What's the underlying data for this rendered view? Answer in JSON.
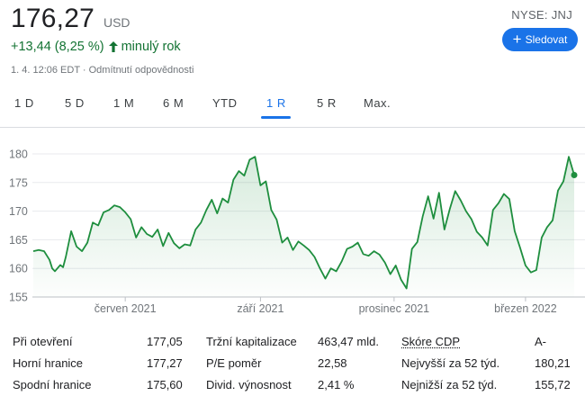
{
  "header": {
    "price": "176,27",
    "currency": "USD",
    "change": "+13,44 (8,25 %)",
    "change_period": "minulý rok",
    "meta": "1. 4. 12:06 EDT · Odmítnutí odpovědnosti",
    "ticker": "NYSE: JNJ",
    "follow_label": "Sledovat"
  },
  "tabs": [
    {
      "label": "1 D"
    },
    {
      "label": "5 D"
    },
    {
      "label": "1 M"
    },
    {
      "label": "6 M"
    },
    {
      "label": "YTD"
    },
    {
      "label": "1 R",
      "active": true
    },
    {
      "label": "5 R"
    },
    {
      "label": "Max."
    }
  ],
  "colors": {
    "positive": "#137333",
    "line": "#1e8e3e",
    "accent": "#1a73e8",
    "grid": "#e8eaed"
  },
  "stats": [
    [
      {
        "label": "Při otevření",
        "value": "177,05"
      },
      {
        "label": "Tržní kapitalizace",
        "value": "463,47 mld."
      },
      {
        "label": "Skóre CDP",
        "value": "A-",
        "link": true
      }
    ],
    [
      {
        "label": "Horní hranice",
        "value": "177,27"
      },
      {
        "label": "P/E poměr",
        "value": "22,58"
      },
      {
        "label": "Nejvyšší za 52 týd.",
        "value": "180,21"
      }
    ],
    [
      {
        "label": "Spodní hranice",
        "value": "175,60"
      },
      {
        "label": "Divid. výnosnost",
        "value": "2,41 %"
      },
      {
        "label": "Nejnižší za 52 týd.",
        "value": "155,72"
      }
    ]
  ],
  "chart_data": {
    "type": "area",
    "ylim": [
      155,
      180
    ],
    "yticks": [
      180,
      175,
      170,
      165,
      160,
      155
    ],
    "xticks": [
      {
        "label": "červen 2021",
        "t": 0.17
      },
      {
        "label": "září 2021",
        "t": 0.42
      },
      {
        "label": "prosinec 2021",
        "t": 0.667
      },
      {
        "label": "březen 2022",
        "t": 0.91
      }
    ],
    "series": [
      {
        "t": [
          0.0,
          0.01,
          0.02,
          0.03,
          0.035,
          0.04,
          0.05,
          0.055,
          0.06,
          0.07,
          0.08,
          0.09,
          0.1,
          0.11,
          0.12,
          0.13,
          0.14,
          0.15,
          0.16,
          0.17,
          0.18,
          0.19,
          0.2,
          0.21,
          0.22,
          0.23,
          0.24,
          0.25,
          0.26,
          0.27,
          0.28,
          0.29,
          0.3,
          0.31,
          0.32,
          0.33,
          0.34,
          0.35,
          0.36,
          0.37,
          0.38,
          0.39,
          0.4,
          0.41,
          0.42,
          0.43,
          0.44,
          0.45,
          0.46,
          0.47,
          0.48,
          0.49,
          0.5,
          0.51,
          0.52,
          0.53,
          0.54,
          0.55,
          0.56,
          0.57,
          0.58,
          0.59,
          0.6,
          0.61,
          0.62,
          0.63,
          0.64,
          0.65,
          0.66,
          0.67,
          0.68,
          0.69,
          0.7,
          0.71,
          0.72,
          0.73,
          0.74,
          0.75,
          0.76,
          0.77,
          0.78,
          0.79,
          0.8,
          0.81,
          0.82,
          0.83,
          0.84,
          0.85,
          0.86,
          0.87,
          0.88,
          0.89,
          0.9,
          0.91,
          0.92,
          0.93,
          0.94,
          0.95,
          0.96,
          0.97,
          0.98,
          0.99,
          1.0
        ],
        "values": [
          163.0,
          163.2,
          163.0,
          161.5,
          160.0,
          159.5,
          160.6,
          160.2,
          162.0,
          166.5,
          163.8,
          163.0,
          164.5,
          168.0,
          167.5,
          169.8,
          170.2,
          171.0,
          170.7,
          169.8,
          168.6,
          165.4,
          167.2,
          166.0,
          165.5,
          166.8,
          163.9,
          166.2,
          164.4,
          163.5,
          164.2,
          164.0,
          166.8,
          168.0,
          170.2,
          172.0,
          169.6,
          172.2,
          171.5,
          175.5,
          177.0,
          176.2,
          179.0,
          179.5,
          174.5,
          175.2,
          170.2,
          168.5,
          164.5,
          165.4,
          163.2,
          164.7,
          164.0,
          163.2,
          162.0,
          160.0,
          158.2,
          160.0,
          159.5,
          161.2,
          163.4,
          163.8,
          164.5,
          162.5,
          162.2,
          163.0,
          162.4,
          161.0,
          159.0,
          160.5,
          158.0,
          156.5,
          163.4,
          164.6,
          169.1,
          172.6,
          168.7,
          173.2,
          166.8,
          170.4,
          173.5,
          171.9,
          170.0,
          168.6,
          166.4,
          165.4,
          164.0,
          170.2,
          171.4,
          173.0,
          172.1,
          166.5,
          163.6,
          160.5,
          159.3,
          159.7,
          165.4,
          167.2,
          168.4,
          173.6,
          175.2,
          179.5,
          176.3
        ]
      }
    ]
  }
}
